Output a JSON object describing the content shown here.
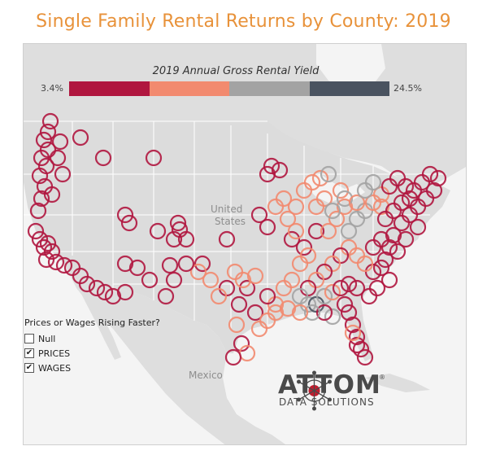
{
  "title": "Single Family Rental Returns by County: 2019",
  "legend": {
    "title": "2019 Annual Gross Rental Yield",
    "min_label": "3.4%",
    "max_label": "24.5%",
    "colors": [
      "#b0163f",
      "#f28a6f",
      "#a3a3a3",
      "#4a5360"
    ]
  },
  "map_labels": {
    "country_us_line1": "United",
    "country_us_line2": "States",
    "country_mexico": "Mexico"
  },
  "filter": {
    "title": "Prices or Wages Rising Faster?",
    "options": [
      {
        "label": "Null",
        "checked": false
      },
      {
        "label": "PRICES",
        "checked": true
      },
      {
        "label": "WAGES",
        "checked": true
      }
    ]
  },
  "logo": {
    "name": "ATTOM",
    "subtitle": "DATA SOLUTIONS",
    "mark": "®"
  },
  "colors": {
    "title": "#e8923a",
    "land": "#dedede",
    "water": "#f4f4f4",
    "border": "#ffffff"
  }
}
